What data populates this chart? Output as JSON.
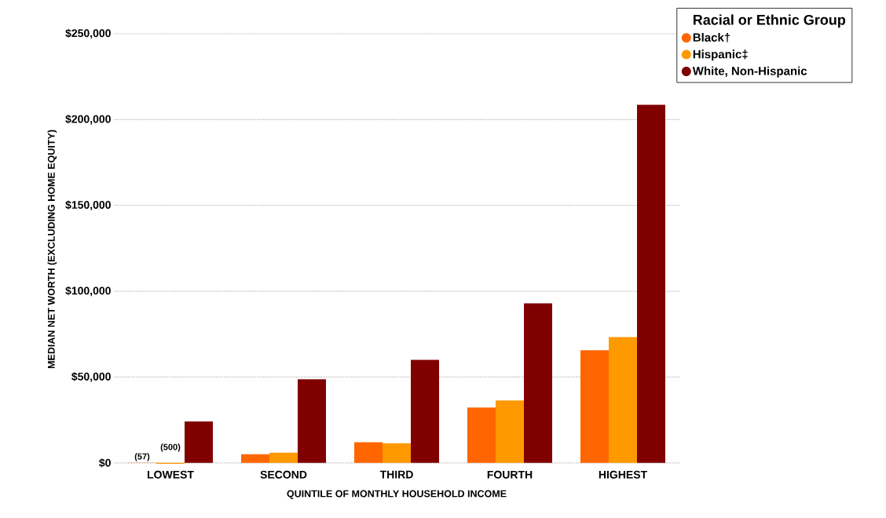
{
  "chart_data": {
    "type": "bar",
    "xlabel": "QUINTILE OF MONTHLY HOUSEHOLD INCOME",
    "ylabel": "MEDIAN NET WORTH (EXCLUDING HOME EQUITY)",
    "legend_title": "Racial or Ethnic Group",
    "categories": [
      "LOWEST",
      "SECOND",
      "THIRD",
      "FOURTH",
      "HIGHEST"
    ],
    "series": [
      {
        "name": "Black†",
        "color": "#ff6600",
        "values": [
          -57,
          5000,
          12000,
          32300,
          65600
        ],
        "value_labels": [
          "(57)",
          null,
          null,
          null,
          null
        ]
      },
      {
        "name": "Hispanic‡",
        "color": "#ff9900",
        "values": [
          -500,
          6000,
          11500,
          36400,
          73300
        ],
        "value_labels": [
          "(500)",
          null,
          null,
          null,
          null
        ]
      },
      {
        "name": "White, Non-Hispanic",
        "color": "#800000",
        "values": [
          24100,
          48700,
          60000,
          92900,
          208600
        ]
      }
    ],
    "ylim": [
      -1000,
      250000
    ],
    "yticks": [
      {
        "value": 0,
        "label": "$0"
      },
      {
        "value": 50000,
        "label": "$50,000"
      },
      {
        "value": 100000,
        "label": "$100,000"
      },
      {
        "value": 150000,
        "label": "$150,000"
      },
      {
        "value": 200000,
        "label": "$200,000"
      },
      {
        "value": 250000,
        "label": "$250,000"
      }
    ],
    "grid": "y",
    "legend": "top right"
  }
}
